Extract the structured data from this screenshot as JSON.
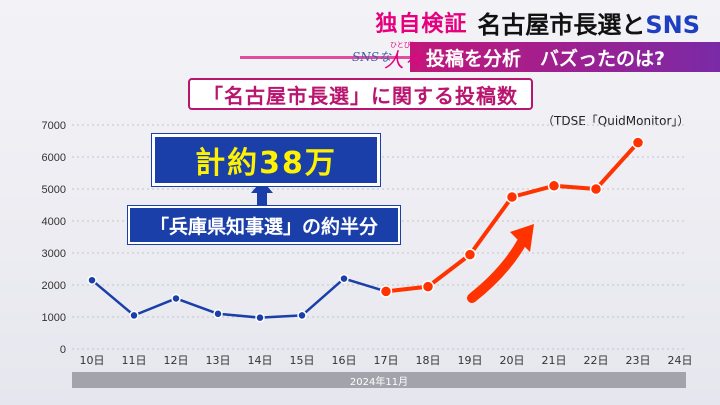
{
  "header": {
    "tag": "独自検証",
    "headline_pre": "名古屋市長選と",
    "headline_sns": "SNS",
    "subheadline": "投稿を分析　バズったのは?",
    "logo_sns": "SNSな",
    "logo_hito": "人々",
    "logo_small": "ひとびと"
  },
  "chart_title": "「名古屋市長選」に関する投稿数",
  "source": "（TDSE「QuidMonitor」）",
  "callout_big": "計約38万",
  "callout_sub": "「兵庫県知事選」の約半分",
  "colors": {
    "blue": "#1a3fa8",
    "red": "#ff3300",
    "magenta": "#b8156f"
  },
  "chart_data": {
    "type": "line",
    "categories": [
      "10日",
      "11日",
      "12日",
      "13日",
      "14日",
      "15日",
      "16日",
      "17日",
      "18日",
      "19日",
      "20日",
      "21日",
      "22日",
      "23日",
      "24日"
    ],
    "xlabel": "2024年11月",
    "ylabel": "",
    "ylim": [
      0,
      7000
    ],
    "yticks": [
      0,
      1000,
      2000,
      3000,
      4000,
      5000,
      6000,
      7000
    ],
    "grid": true,
    "series": [
      {
        "color": "#1a3fa8",
        "values": [
          2150,
          1050,
          1580,
          1100,
          980,
          1050,
          2200,
          1800,
          null,
          null,
          null,
          null,
          null,
          null,
          null
        ]
      },
      {
        "color": "#ff3300",
        "values": [
          null,
          null,
          null,
          null,
          null,
          null,
          null,
          1800,
          1950,
          2950,
          4750,
          5100,
          5000,
          6450,
          null
        ]
      }
    ]
  }
}
